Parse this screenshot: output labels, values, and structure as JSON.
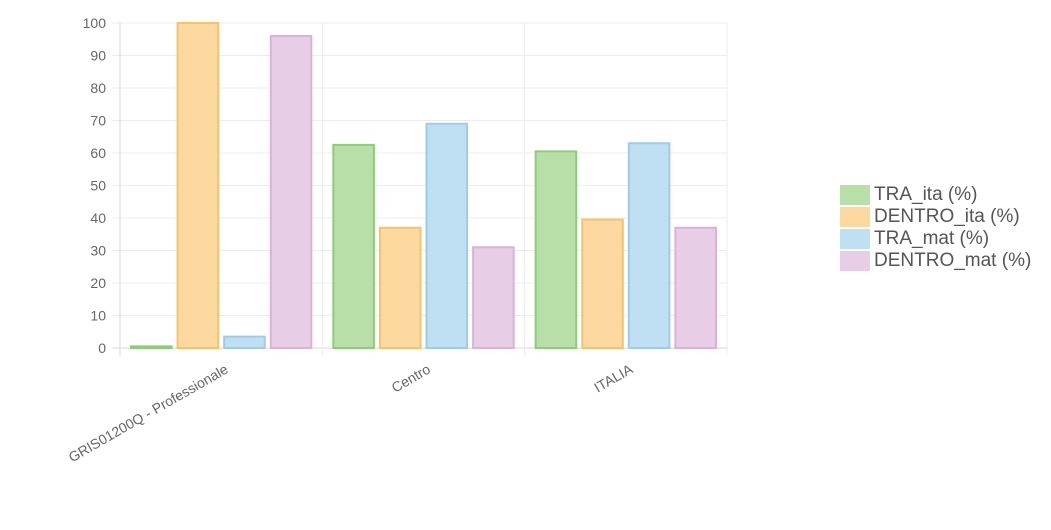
{
  "chart_data": {
    "type": "bar",
    "categories": [
      "GRIS01200Q - Professionale",
      "Centro",
      "ITALIA"
    ],
    "series": [
      {
        "name": "TRA_ita (%)",
        "values": [
          0.5,
          62.5,
          60.5
        ],
        "fill": "#b8dfa8",
        "stroke": "#8dcc78"
      },
      {
        "name": "DENTRO_ita (%)",
        "values": [
          100,
          37,
          39.5
        ],
        "fill": "#fdd9a0",
        "stroke": "#f6c36d"
      },
      {
        "name": "TRA_mat (%)",
        "values": [
          3.5,
          69,
          63
        ],
        "fill": "#bfe0f3",
        "stroke": "#9fcbe8"
      },
      {
        "name": "DENTRO_mat (%)",
        "values": [
          96,
          31,
          37
        ],
        "fill": "#e8cde6",
        "stroke": "#d8b3d6"
      }
    ],
    "ylim": [
      0,
      100
    ],
    "yticks": [
      0,
      10,
      20,
      30,
      40,
      50,
      60,
      70,
      80,
      90,
      100
    ],
    "grid": true,
    "legend_position": "right"
  }
}
